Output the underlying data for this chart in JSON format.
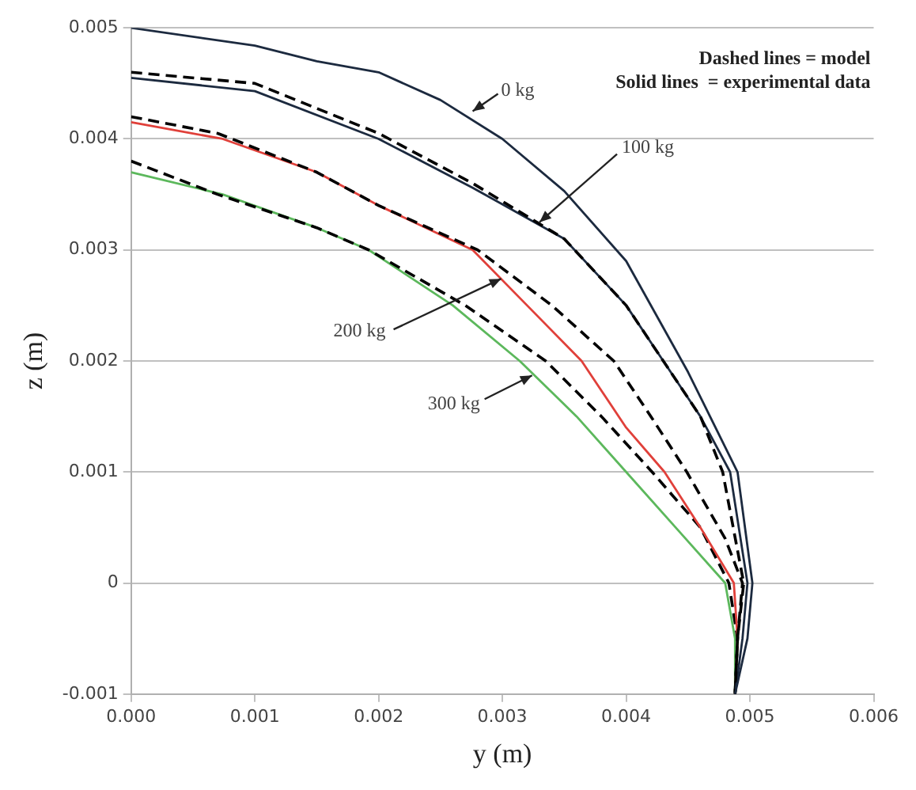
{
  "chart_data": {
    "type": "line",
    "xlabel": "y (m)",
    "ylabel": "z (m)",
    "xlim": [
      0,
      0.006
    ],
    "xticks": [
      {
        "value": 0,
        "label": "0.000"
      },
      {
        "value": 0.001,
        "label": "0.001"
      },
      {
        "value": 0.002,
        "label": "0.002"
      },
      {
        "value": 0.003,
        "label": "0.003"
      },
      {
        "value": 0.004,
        "label": "0.004"
      },
      {
        "value": 0.005,
        "label": "0.005"
      },
      {
        "value": 0.006,
        "label": "0.006"
      }
    ],
    "ylim": [
      -0.001,
      0.005
    ],
    "yticks": [
      -0.001,
      0,
      0.001,
      0.002,
      0.003,
      0.004,
      0.005
    ],
    "grid": "y",
    "legend": false,
    "marker": "none",
    "series": [
      {
        "color": "#1c2a3f",
        "line_style": "solid",
        "x": [
          0,
          0.001,
          0.0015,
          0.002,
          0.0025,
          0.003,
          0.0035,
          0.004,
          0.0045,
          0.0049,
          0.00502,
          0.00498,
          0.00488
        ],
        "values": [
          0.005,
          0.00484,
          0.0047,
          0.0046,
          0.00435,
          0.004,
          0.00353,
          0.0029,
          0.0019,
          0.001,
          0,
          -0.0005,
          -0.001
        ]
      },
      {
        "color": "#000000",
        "line_style": "dashed",
        "x": [
          0,
          0.001,
          0.002,
          0.00276,
          0.0035,
          0.004,
          0.0043,
          0.0046,
          0.00478,
          0.00495,
          0.0049,
          0.00488
        ],
        "values": [
          0.0046,
          0.0045,
          0.00405,
          0.0036,
          0.0031,
          0.0025,
          0.002,
          0.0015,
          0.001,
          0,
          -0.0005,
          -0.001
        ]
      },
      {
        "color": "#1c2a3f",
        "line_style": "solid",
        "x": [
          0,
          0.001,
          0.002,
          0.00276,
          0.0035,
          0.004,
          0.0043,
          0.0046,
          0.00484,
          0.00498,
          0.00494,
          0.00488
        ],
        "values": [
          0.00455,
          0.00443,
          0.004,
          0.00356,
          0.0031,
          0.0025,
          0.002,
          0.0015,
          0.001,
          0,
          -0.0005,
          -0.001
        ]
      },
      {
        "color": "#000000",
        "line_style": "dashed",
        "x": [
          0,
          0.0007,
          0.0015,
          0.002,
          0.0028,
          0.0034,
          0.0039,
          0.0042,
          0.00449,
          0.0048,
          0.00494,
          0.0049,
          0.00488
        ],
        "values": [
          0.0042,
          0.00405,
          0.0037,
          0.0034,
          0.003,
          0.0025,
          0.002,
          0.0015,
          0.001,
          0.0004,
          0,
          -0.0005,
          -0.001
        ]
      },
      {
        "color": "#e0403a",
        "line_style": "solid",
        "x": [
          0,
          0.00074,
          0.0015,
          0.002,
          0.00276,
          0.0032,
          0.00364,
          0.004,
          0.00431,
          0.0046,
          0.00487,
          0.0049,
          0.00488
        ],
        "values": [
          0.00415,
          0.004,
          0.0037,
          0.0034,
          0.003,
          0.0025,
          0.002,
          0.0014,
          0.001,
          0.0005,
          0,
          -0.0005,
          -0.001
        ]
      },
      {
        "color": "#000000",
        "line_style": "dashed",
        "x": [
          0,
          0.0007,
          0.0015,
          0.00192,
          0.0027,
          0.00335,
          0.0038,
          0.00421,
          0.0046,
          0.00483,
          0.0049,
          0.00488
        ],
        "values": [
          0.0038,
          0.0035,
          0.0032,
          0.003,
          0.0025,
          0.002,
          0.0015,
          0.001,
          0.0005,
          0,
          -0.0005,
          -0.001
        ]
      },
      {
        "color": "#5cb85c",
        "line_style": "solid",
        "x": [
          0,
          0.00074,
          0.0015,
          0.00192,
          0.0026,
          0.00314,
          0.0036,
          0.004,
          0.0044,
          0.0048,
          0.00488,
          0.00488
        ],
        "values": [
          0.0037,
          0.0035,
          0.0032,
          0.003,
          0.0025,
          0.002,
          0.0015,
          0.001,
          0.0005,
          0,
          -0.0005,
          -0.001
        ]
      }
    ],
    "annotations": [
      "Dashed lines = model",
      "Solid lines  = experimental data",
      {
        "text": "0 kg",
        "x": 0.00276,
        "y": 0.00425
      },
      {
        "text": "100 kg",
        "x": 0.0033,
        "y": 0.00325
      },
      {
        "text": "200 kg",
        "x": 0.00299,
        "y": 0.00274
      },
      {
        "text": "300 kg",
        "x": 0.00324,
        "y": 0.00187
      }
    ]
  }
}
